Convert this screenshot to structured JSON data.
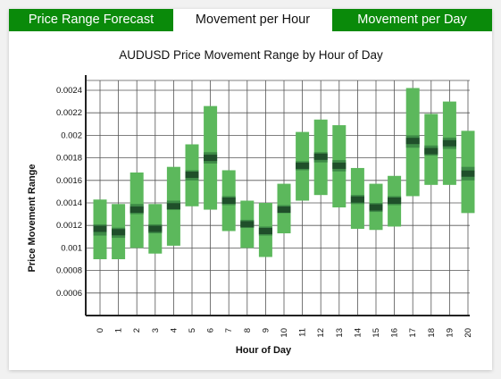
{
  "tabs": [
    {
      "label": "Price Range Forecast",
      "active": false
    },
    {
      "label": "Movement per Hour",
      "active": true
    },
    {
      "label": "Movement per Day",
      "active": false
    }
  ],
  "colors": {
    "tab_active_bg": "#ffffff",
    "tab_inactive_bg": "#0a8a0a",
    "range_bar": "#5cb85c",
    "inner_band": "#3d8a46",
    "median_mark": "#1f4f2a",
    "grid": "#555555"
  },
  "chart_data": {
    "type": "range-bar",
    "title": "AUDUSD Price Movement Range by Hour of Day",
    "xlabel": "Hour of Day",
    "ylabel": "Price Movement Range",
    "ylim": [
      0.0004,
      0.0025
    ],
    "yticks": [
      "0.0006",
      "0.0008",
      "0.001",
      "0.0012",
      "0.0014",
      "0.0016",
      "0.0018",
      "0.002",
      "0.0022",
      "0.0024"
    ],
    "categories": [
      "0",
      "1",
      "2",
      "3",
      "4",
      "5",
      "6",
      "7",
      "8",
      "9",
      "10",
      "11",
      "12",
      "13",
      "14",
      "15",
      "16",
      "17",
      "18",
      "19",
      "20"
    ],
    "series": [
      {
        "low": 0.0009,
        "high": 0.00143,
        "q1": 0.00111,
        "q3": 0.00121,
        "median": 0.00117
      },
      {
        "low": 0.0009,
        "high": 0.00139,
        "q1": 0.00109,
        "q3": 0.00118,
        "median": 0.00114
      },
      {
        "low": 0.001,
        "high": 0.00167,
        "q1": 0.0013,
        "q3": 0.00139,
        "median": 0.00134
      },
      {
        "low": 0.00095,
        "high": 0.00139,
        "q1": 0.00113,
        "q3": 0.00121,
        "median": 0.00117
      },
      {
        "low": 0.00102,
        "high": 0.00172,
        "q1": 0.00134,
        "q3": 0.00142,
        "median": 0.00137
      },
      {
        "low": 0.00137,
        "high": 0.00192,
        "q1": 0.0016,
        "q3": 0.00169,
        "median": 0.00165
      },
      {
        "low": 0.00134,
        "high": 0.00226,
        "q1": 0.00175,
        "q3": 0.00185,
        "median": 0.0018
      },
      {
        "low": 0.00115,
        "high": 0.00169,
        "q1": 0.00138,
        "q3": 0.00146,
        "median": 0.00142
      },
      {
        "low": 0.001,
        "high": 0.00142,
        "q1": 0.00118,
        "q3": 0.00125,
        "median": 0.00121
      },
      {
        "low": 0.00092,
        "high": 0.0014,
        "q1": 0.00111,
        "q3": 0.00119,
        "median": 0.00115
      },
      {
        "low": 0.00113,
        "high": 0.00157,
        "q1": 0.00131,
        "q3": 0.00138,
        "median": 0.00134
      },
      {
        "low": 0.00142,
        "high": 0.00203,
        "q1": 0.00169,
        "q3": 0.00177,
        "median": 0.00173
      },
      {
        "low": 0.00147,
        "high": 0.00214,
        "q1": 0.00176,
        "q3": 0.00185,
        "median": 0.00181
      },
      {
        "low": 0.00136,
        "high": 0.00209,
        "q1": 0.00168,
        "q3": 0.00178,
        "median": 0.00173
      },
      {
        "low": 0.00117,
        "high": 0.00171,
        "q1": 0.00139,
        "q3": 0.00147,
        "median": 0.00143
      },
      {
        "low": 0.00116,
        "high": 0.00157,
        "q1": 0.00132,
        "q3": 0.0014,
        "median": 0.00136
      },
      {
        "low": 0.00119,
        "high": 0.00164,
        "q1": 0.00138,
        "q3": 0.00146,
        "median": 0.00142
      },
      {
        "low": 0.00146,
        "high": 0.00242,
        "q1": 0.00189,
        "q3": 0.002,
        "median": 0.00195
      },
      {
        "low": 0.00156,
        "high": 0.00219,
        "q1": 0.00182,
        "q3": 0.00191,
        "median": 0.00186
      },
      {
        "low": 0.00156,
        "high": 0.0023,
        "q1": 0.00188,
        "q3": 0.00198,
        "median": 0.00193
      },
      {
        "low": 0.00131,
        "high": 0.00204,
        "q1": 0.0016,
        "q3": 0.00172,
        "median": 0.00166
      }
    ],
    "grid": true,
    "legend": "none"
  }
}
